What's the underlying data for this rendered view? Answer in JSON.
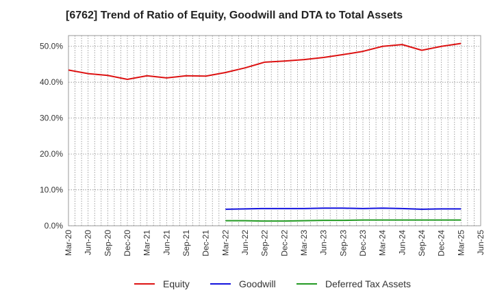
{
  "chart_data": {
    "type": "line",
    "title": "[6762]  Trend of Ratio of Equity, Goodwill and DTA to Total Assets",
    "xlabel": "",
    "ylabel": "",
    "ylim": [
      0,
      53
    ],
    "y_ticks": [
      "0.0%",
      "10.0%",
      "20.0%",
      "30.0%",
      "40.0%",
      "50.0%"
    ],
    "x_ticks": [
      "Mar-20",
      "Jun-20",
      "Sep-20",
      "Dec-20",
      "Mar-21",
      "Jun-21",
      "Sep-21",
      "Dec-21",
      "Mar-22",
      "Jun-22",
      "Sep-22",
      "Dec-22",
      "Mar-23",
      "Jun-23",
      "Sep-23",
      "Dec-23",
      "Mar-24",
      "Jun-24",
      "Sep-24",
      "Dec-24",
      "Mar-25",
      "Jun-25"
    ],
    "grid": true,
    "legend_position": "bottom",
    "series": [
      {
        "name": "Equity",
        "color": "#dd1111",
        "values": [
          43.4,
          42.4,
          41.9,
          40.8,
          41.8,
          41.2,
          41.8,
          41.7,
          42.7,
          44.0,
          45.6,
          45.9,
          46.3,
          46.9,
          47.7,
          48.6,
          50.0,
          50.5,
          48.9,
          50.0,
          50.8,
          null
        ]
      },
      {
        "name": "Goodwill",
        "color": "#1111dd",
        "values": [
          null,
          null,
          null,
          null,
          null,
          null,
          null,
          null,
          4.6,
          4.7,
          4.8,
          4.8,
          4.8,
          4.9,
          4.9,
          4.8,
          4.9,
          4.8,
          4.6,
          4.7,
          4.7,
          null
        ]
      },
      {
        "name": "Deferred Tax Assets",
        "color": "#229922",
        "values": [
          null,
          null,
          null,
          null,
          null,
          null,
          null,
          null,
          1.4,
          1.4,
          1.3,
          1.3,
          1.4,
          1.5,
          1.5,
          1.6,
          1.6,
          1.6,
          1.6,
          1.6,
          1.6,
          null
        ]
      }
    ]
  }
}
